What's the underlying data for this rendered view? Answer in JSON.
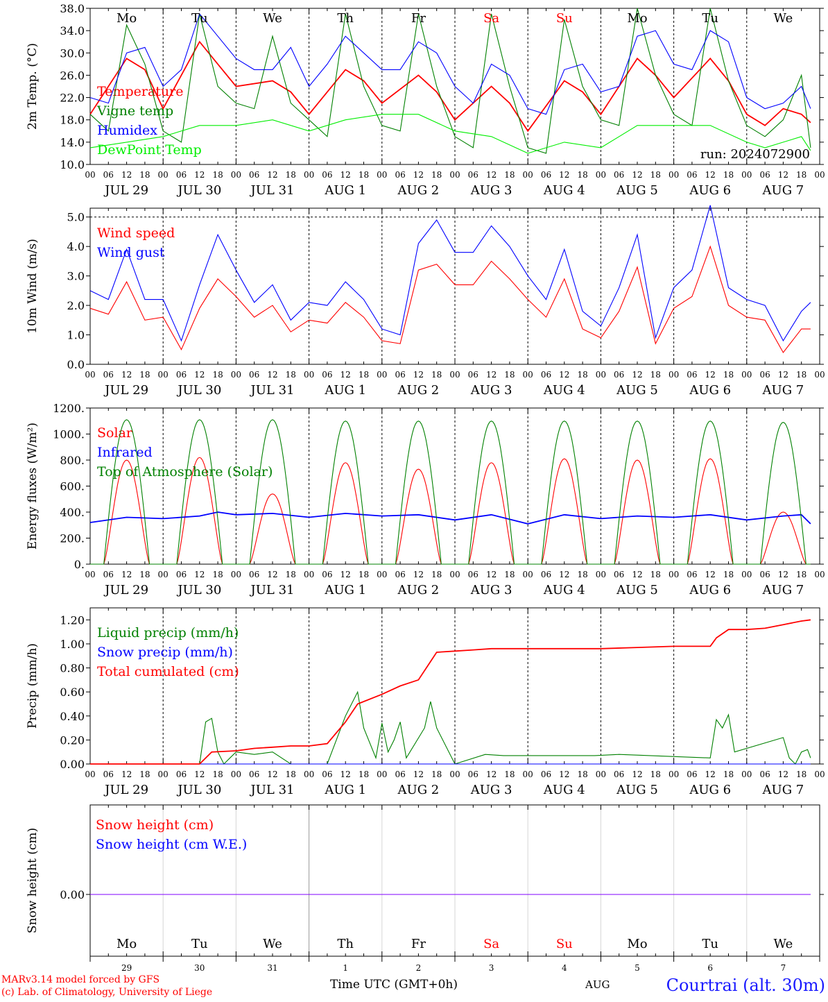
{
  "days": [
    "Mo",
    "Tu",
    "We",
    "Th",
    "Fr",
    "Sa",
    "Su",
    "Mo",
    "Tu",
    "We"
  ],
  "weekend_days": [
    5,
    6
  ],
  "dates": [
    "JUL 29",
    "JUL 30",
    "JUL 31",
    "AUG 1",
    "AUG 2",
    "AUG 3",
    "AUG 4",
    "AUG 5",
    "AUG 6",
    "AUG 7"
  ],
  "bottom_day_numbers": [
    "29",
    "30",
    "31",
    "1",
    "2",
    "3",
    "4",
    "5",
    "6",
    "7"
  ],
  "hour_ticks": [
    "00",
    "06",
    "12",
    "18"
  ],
  "hour_tick_final": "00",
  "colors": {
    "temperature": "#ff0000",
    "vigne": "#008000",
    "humidex": "#0000ff",
    "dewpoint": "#00ee00",
    "weekend_label": "#ff0000",
    "grid": "#000000",
    "snow_line": "#7f00ff",
    "station": "#1a1aff"
  },
  "footer": {
    "model": "MARv3.14 model forced by GFS",
    "credit": "(c) Lab. of Climatology, University of Liege",
    "time_axis": "Time UTC (GMT+0h)",
    "month": "AUG",
    "station": "Courtrai (alt. 30m)"
  },
  "chart_data": [
    {
      "id": "temperature",
      "type": "line",
      "ylabel": "2m Temp. (°C)",
      "ylim": [
        10,
        38
      ],
      "yticks": [
        "38.0",
        "34.0",
        "30.0",
        "26.0",
        "22.0",
        "18.0",
        "14.0",
        "10.0"
      ],
      "grid": "vertical dashed at 00 UTC",
      "annotation": "run: 2024072900",
      "series": [
        {
          "name": "Temperature",
          "color": "#ff0000",
          "x_hours": [
            0,
            12,
            18,
            24,
            36,
            42,
            48,
            60,
            66,
            72,
            84,
            90,
            96,
            108,
            114,
            120,
            132,
            138,
            144,
            156,
            162,
            168,
            180,
            186,
            192,
            204,
            210,
            216,
            222,
            228,
            234,
            237
          ],
          "values": [
            19,
            29,
            27,
            20,
            32,
            28,
            24,
            25,
            23,
            19,
            27,
            25,
            21,
            26,
            23,
            18,
            24,
            21,
            16,
            25,
            23,
            19,
            29,
            26,
            22,
            29,
            25,
            19,
            17,
            20,
            19,
            17.5
          ]
        },
        {
          "name": "Vigne temp",
          "color": "#008000",
          "x_hours": [
            0,
            6,
            12,
            18,
            24,
            30,
            36,
            42,
            48,
            54,
            60,
            66,
            72,
            78,
            84,
            90,
            96,
            102,
            108,
            114,
            120,
            126,
            132,
            138,
            144,
            150,
            156,
            162,
            168,
            174,
            180,
            186,
            192,
            198,
            204,
            210,
            216,
            222,
            228,
            234,
            237
          ],
          "values": [
            19,
            16,
            35,
            28,
            16,
            14,
            37,
            24,
            21,
            20,
            33,
            21,
            18,
            15,
            37,
            24,
            17,
            16,
            37,
            24,
            15,
            13,
            37,
            24,
            13,
            12,
            36,
            24,
            18,
            17,
            38,
            26,
            19,
            17,
            38,
            25,
            17,
            15,
            18,
            26,
            13
          ]
        },
        {
          "name": "Humidex",
          "color": "#0000ff",
          "x_hours": [
            0,
            6,
            12,
            18,
            24,
            30,
            36,
            42,
            48,
            54,
            60,
            66,
            72,
            78,
            84,
            90,
            96,
            102,
            108,
            114,
            120,
            126,
            132,
            138,
            144,
            150,
            156,
            162,
            168,
            174,
            180,
            186,
            192,
            198,
            204,
            210,
            216,
            222,
            228,
            234,
            237
          ],
          "values": [
            22,
            21,
            30,
            31,
            24,
            27,
            37,
            33,
            29,
            27,
            27,
            31,
            24,
            28,
            33,
            30,
            27,
            27,
            32,
            30,
            24,
            21,
            28,
            26,
            20,
            19,
            27,
            28,
            23,
            24,
            33,
            34,
            28,
            27,
            34,
            32,
            22,
            20,
            21,
            24,
            20
          ]
        },
        {
          "name": "DewPoint Temp",
          "color": "#00ee00",
          "x_hours": [
            0,
            12,
            24,
            36,
            48,
            60,
            72,
            84,
            96,
            108,
            120,
            132,
            144,
            156,
            168,
            180,
            192,
            204,
            216,
            222,
            228,
            234,
            237
          ],
          "values": [
            13,
            14,
            15,
            17,
            17,
            18,
            16,
            18,
            19,
            19,
            16,
            15,
            12,
            14,
            13,
            17,
            17,
            17,
            14,
            13,
            14,
            15,
            12.5
          ]
        }
      ]
    },
    {
      "id": "wind",
      "type": "line",
      "ylabel": "10m Wind (m/s)",
      "ylim": [
        0,
        5.3
      ],
      "yticks": [
        "5.0",
        "4.0",
        "3.0",
        "2.0",
        "1.0",
        "0.0"
      ],
      "reference_line": 5.0,
      "series": [
        {
          "name": "Wind speed",
          "color": "#ff0000",
          "x_hours": [
            0,
            6,
            12,
            18,
            24,
            30,
            36,
            42,
            48,
            54,
            60,
            66,
            72,
            78,
            84,
            90,
            96,
            102,
            108,
            114,
            120,
            126,
            132,
            138,
            144,
            150,
            156,
            162,
            168,
            174,
            180,
            186,
            192,
            198,
            204,
            210,
            216,
            222,
            228,
            234,
            237
          ],
          "values": [
            1.9,
            1.7,
            2.8,
            1.5,
            1.6,
            0.5,
            1.9,
            2.9,
            2.3,
            1.6,
            2.0,
            1.1,
            1.5,
            1.4,
            2.1,
            1.6,
            0.8,
            0.7,
            3.2,
            3.4,
            2.7,
            2.7,
            3.5,
            2.9,
            2.2,
            1.6,
            2.9,
            1.2,
            0.9,
            1.8,
            3.3,
            0.7,
            1.9,
            2.3,
            4.0,
            2.0,
            1.6,
            1.5,
            0.4,
            1.2,
            1.2
          ]
        },
        {
          "name": "Wind gust",
          "color": "#0000ff",
          "x_hours": [
            0,
            6,
            12,
            18,
            24,
            30,
            36,
            42,
            48,
            54,
            60,
            66,
            72,
            78,
            84,
            90,
            96,
            102,
            108,
            114,
            120,
            126,
            132,
            138,
            144,
            150,
            156,
            162,
            168,
            174,
            180,
            186,
            192,
            198,
            204,
            210,
            216,
            222,
            228,
            234,
            237
          ],
          "values": [
            2.5,
            2.2,
            3.9,
            2.2,
            2.2,
            0.8,
            2.7,
            4.4,
            3.2,
            2.1,
            2.7,
            1.5,
            2.1,
            2.0,
            2.8,
            2.2,
            1.2,
            1.0,
            4.1,
            4.9,
            3.8,
            3.8,
            4.7,
            4.0,
            3.0,
            2.2,
            3.9,
            1.8,
            1.3,
            2.6,
            4.4,
            0.9,
            2.6,
            3.2,
            5.4,
            2.6,
            2.2,
            2.0,
            0.8,
            1.8,
            2.1
          ]
        }
      ]
    },
    {
      "id": "radiation",
      "type": "line",
      "ylabel": "Energy fluxes (W/m²)",
      "ylim": [
        0,
        1200
      ],
      "yticks": [
        "1200.",
        "1000.",
        "800.",
        "600.",
        "400.",
        "200.",
        "0."
      ],
      "series": [
        {
          "name": "Solar",
          "color": "#ff0000",
          "peaks": [
            800,
            820,
            540,
            780,
            730,
            780,
            810,
            800,
            810,
            400
          ]
        },
        {
          "name": "Infrared",
          "color": "#0000ff",
          "x_hours": [
            0,
            12,
            24,
            36,
            42,
            48,
            60,
            72,
            84,
            96,
            108,
            120,
            132,
            144,
            156,
            168,
            180,
            192,
            204,
            216,
            228,
            234,
            237
          ],
          "values": [
            320,
            360,
            350,
            370,
            400,
            380,
            390,
            360,
            390,
            370,
            380,
            340,
            380,
            310,
            380,
            350,
            370,
            360,
            380,
            340,
            370,
            380,
            310
          ]
        },
        {
          "name": "Top of Atmosphere (Solar)",
          "color": "#008000",
          "peaks": [
            1110,
            1110,
            1110,
            1100,
            1100,
            1100,
            1100,
            1100,
            1100,
            1090
          ]
        }
      ]
    },
    {
      "id": "precip",
      "type": "line",
      "ylabel": "Precip (mm/h)",
      "ylim": [
        0,
        1.3
      ],
      "yticks": [
        "1.20",
        "1.00",
        "0.80",
        "0.60",
        "0.40",
        "0.20",
        "0.00"
      ],
      "series": [
        {
          "name": "Liquid precip (mm/h)",
          "color": "#008000",
          "x_hours": [
            0,
            36,
            38,
            40,
            42,
            44,
            46,
            48,
            54,
            60,
            66,
            72,
            78,
            84,
            88,
            90,
            94,
            96,
            98,
            100,
            102,
            104,
            110,
            112,
            114,
            120,
            130,
            136,
            166,
            174,
            204,
            206,
            208,
            210,
            212,
            228,
            230,
            232,
            234,
            236,
            237
          ],
          "values": [
            0,
            0,
            0.35,
            0.38,
            0.1,
            0,
            0.05,
            0.1,
            0.08,
            0.1,
            0,
            0,
            0,
            0.4,
            0.6,
            0.3,
            0.05,
            0.34,
            0.1,
            0.2,
            0.35,
            0.05,
            0.3,
            0.52,
            0.3,
            0,
            0.08,
            0.07,
            0.07,
            0.08,
            0.05,
            0.37,
            0.3,
            0.41,
            0.1,
            0.22,
            0.05,
            0,
            0.1,
            0.12,
            0.05
          ]
        },
        {
          "name": "Snow precip (mm/h)",
          "color": "#0000ff",
          "x_hours": [
            0,
            237
          ],
          "values": [
            0,
            0
          ]
        },
        {
          "name": "Total cumulated (cm)",
          "color": "#ff0000",
          "x_hours": [
            0,
            36,
            40,
            48,
            54,
            60,
            66,
            72,
            78,
            84,
            88,
            90,
            96,
            102,
            108,
            114,
            120,
            126,
            132,
            138,
            144,
            168,
            180,
            192,
            204,
            206,
            210,
            216,
            222,
            228,
            234,
            237
          ],
          "values": [
            0,
            0,
            0.1,
            0.11,
            0.13,
            0.14,
            0.15,
            0.15,
            0.17,
            0.35,
            0.5,
            0.52,
            0.58,
            0.65,
            0.7,
            0.93,
            0.94,
            0.95,
            0.96,
            0.96,
            0.96,
            0.96,
            0.97,
            0.98,
            0.98,
            1.05,
            1.12,
            1.12,
            1.13,
            1.16,
            1.19,
            1.2
          ]
        }
      ]
    },
    {
      "id": "snow",
      "type": "line",
      "ylabel": "Snow height (cm)",
      "yticks": [
        "0.00"
      ],
      "series": [
        {
          "name": "Snow height (cm)",
          "color": "#ff0000",
          "x_hours": [
            0,
            237
          ],
          "values": [
            0,
            0
          ]
        },
        {
          "name": "Snow height (cm W.E.)",
          "color": "#0000ff",
          "x_hours": [
            0,
            237
          ],
          "values": [
            0,
            0
          ]
        }
      ]
    }
  ]
}
